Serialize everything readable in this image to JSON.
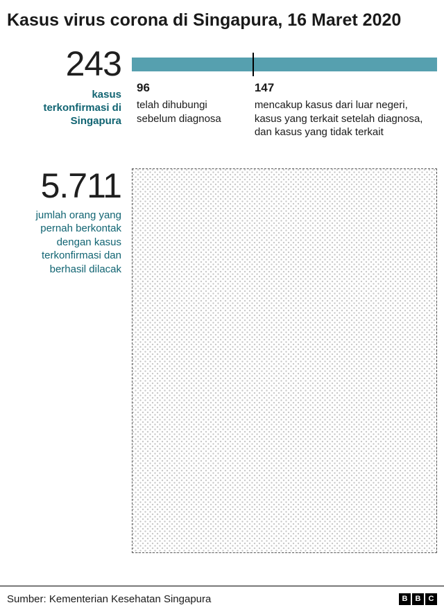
{
  "header": {
    "title": "Kasus virus corona di Singapura, 16 Maret 2020"
  },
  "confirmed": {
    "value": "243",
    "label": "kasus terkonfirmasi di Singapura"
  },
  "bar": {
    "total": 243,
    "segment1": {
      "value": "96",
      "desc": "telah dihubungi sebelum diagnosa"
    },
    "segment2": {
      "value": "147",
      "desc": "mencakup kasus dari luar negeri, kasus yang terkait setelah diagnosa, dan kasus yang tidak terkait"
    }
  },
  "contacts": {
    "value": "5.711",
    "label": "jumlah orang yang pernah berkontak dengan kasus terkonfirmasi dan berhasil dilacak"
  },
  "footer": {
    "source": "Sumber: Kementerian Kesehatan Singapura",
    "logo_letters": [
      "B",
      "B",
      "C"
    ]
  },
  "colors": {
    "bar": "#56a0af",
    "accent": "#116472",
    "dots": "#c9c9c9"
  },
  "chart_data": {
    "type": "bar",
    "title": "Kasus virus corona di Singapura, 16 Maret 2020",
    "orientation": "horizontal",
    "categories": [
      "kasus terkonfirmasi di Singapura"
    ],
    "series": [
      {
        "name": "telah dihubungi sebelum diagnosa",
        "values": [
          96
        ]
      },
      {
        "name": "mencakup kasus dari luar negeri, kasus yang terkait setelah diagnosa, dan kasus yang tidak terkait",
        "values": [
          147
        ]
      }
    ],
    "total_confirmed": 243,
    "contacts_traced": 5711,
    "contacts_traced_label": "jumlah orang yang pernah berkontak dengan kasus terkonfirmasi dan berhasil dilacak",
    "legend_position": "below-bar",
    "grid": false,
    "source": "Sumber: Kementerian Kesehatan Singapura"
  }
}
